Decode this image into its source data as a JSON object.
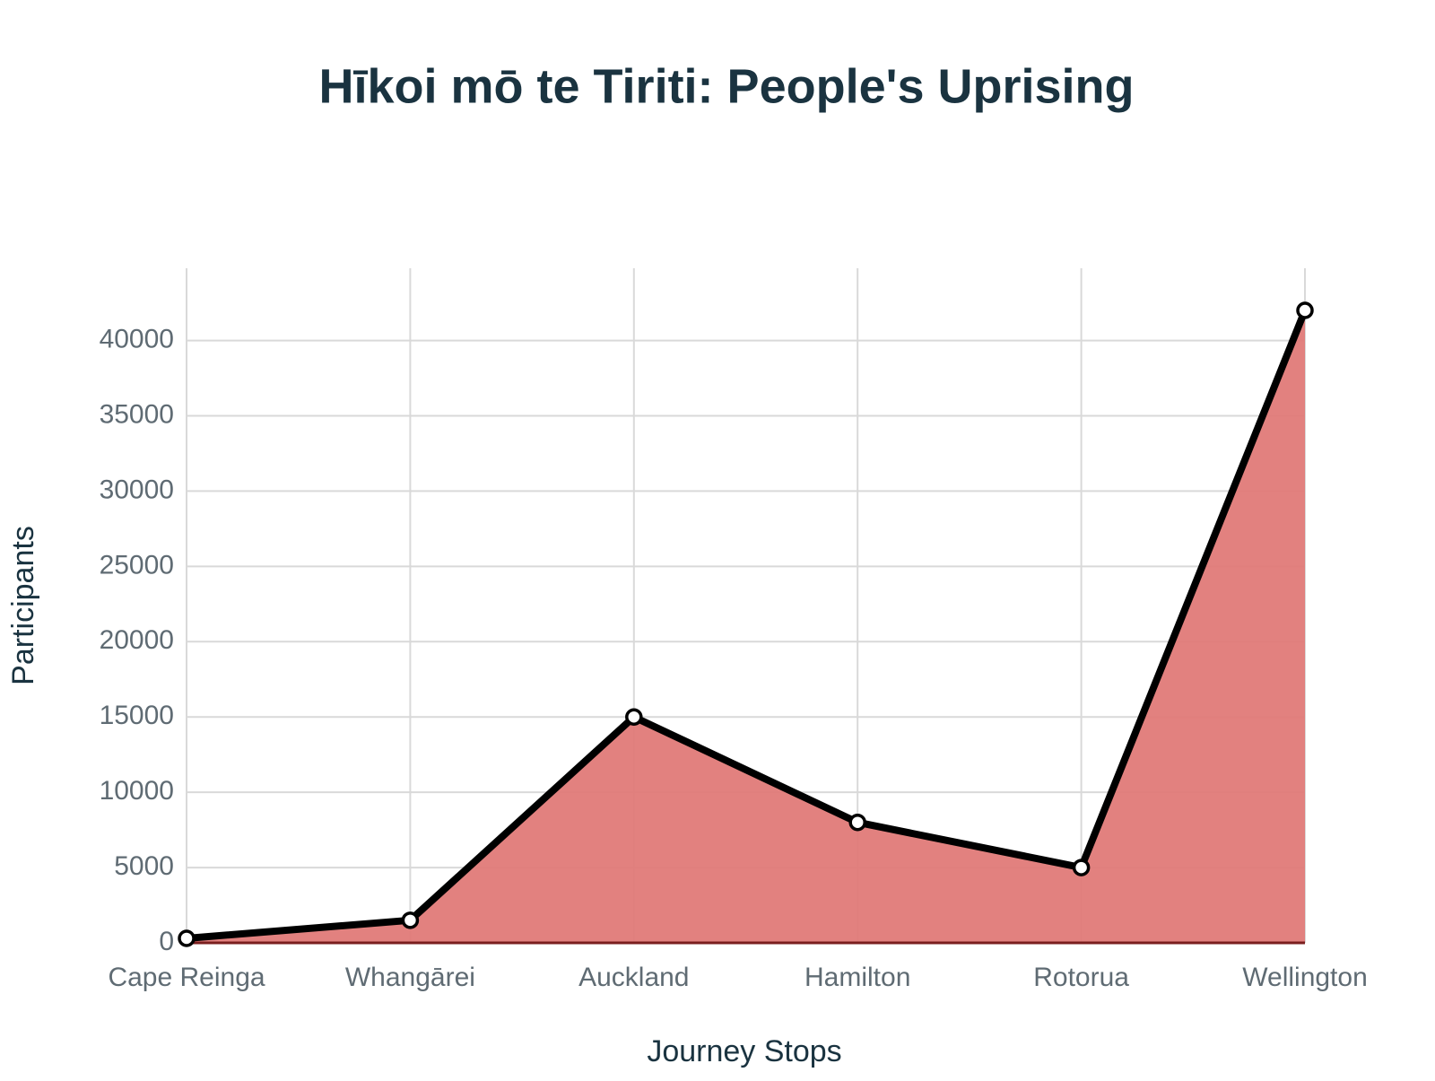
{
  "chart_data": {
    "type": "area",
    "title": "Hīkoi mō te Tiriti: People's Uprising",
    "x_label": "Journey Stops",
    "y_label": "Participants",
    "categories": [
      "Cape Reinga",
      "Whangārei",
      "Auckland",
      "Hamilton",
      "Rotorua",
      "Wellington"
    ],
    "series": [
      {
        "name": "Participants",
        "color": "#e07a78",
        "line_color": "#000000",
        "values": [
          300,
          1500,
          15000,
          8000,
          5000,
          42000
        ]
      }
    ],
    "ylim": [
      0,
      44800
    ],
    "yticks": [
      0,
      5000,
      10000,
      15000,
      20000,
      25000,
      30000,
      35000,
      40000
    ],
    "grid": true
  }
}
